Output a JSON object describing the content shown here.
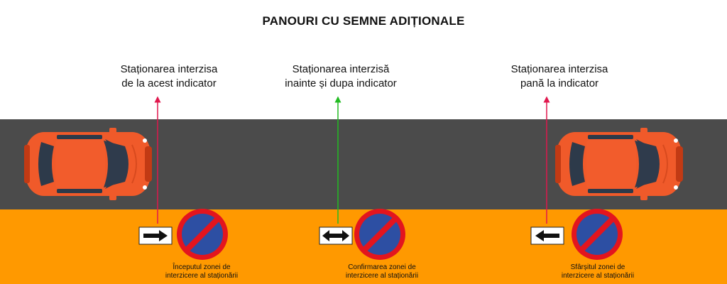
{
  "title": "PANOURI CU SEMNE ADIȚIONALE",
  "captions": [
    {
      "line1": "Staționarea interzisa",
      "line2": "de la acest indicator"
    },
    {
      "line1": "Staționarea interzisă",
      "line2": "inainte și dupa indicator"
    },
    {
      "line1": "Staționarea interzisa",
      "line2": "pană la indicator"
    }
  ],
  "subcaptions": [
    {
      "line1": "Începutul zonei de",
      "line2": "interzicere al staționării"
    },
    {
      "line1": "Confirmarea zonei de",
      "line2": "interzicere al staționării"
    },
    {
      "line1": "Sfârșitul zonei de",
      "line2": "interzicere al staționării"
    }
  ],
  "panels": [
    {
      "arrow": "right-arrow",
      "line_color": "#e0174d"
    },
    {
      "arrow": "double-arrow",
      "line_color": "#22bb22"
    },
    {
      "arrow": "left-arrow",
      "line_color": "#e0174d"
    }
  ],
  "colors": {
    "road": "#4b4b4b",
    "sidewalk": "#ff9900",
    "car": "#f05a2a",
    "sign_red": "#e3151e",
    "sign_blue": "#2d4fa3"
  }
}
